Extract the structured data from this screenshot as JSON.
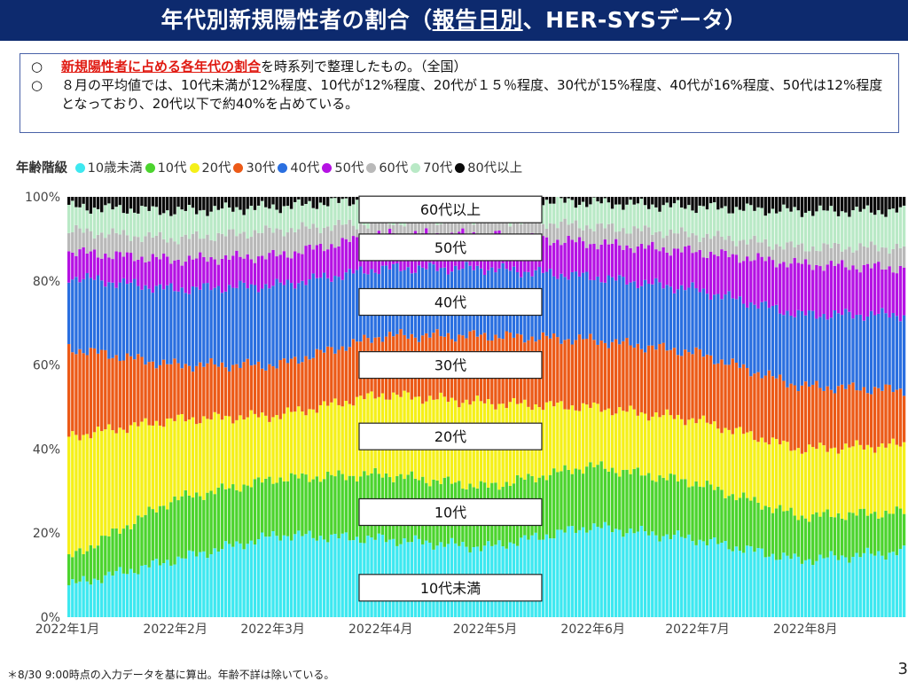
{
  "header": {
    "title_pre": "年代別新規陽性者の割合（",
    "title_underlined": "報告日別",
    "title_post": "、HER-SYSデータ）"
  },
  "notes": {
    "bullet": "○",
    "line1_red": "新規陽性者に占める各年代の割合",
    "line1_rest": "を時系列で整理したもの。（全国）",
    "line2": "８月の平均値では、10代未満が12%程度、10代が12%程度、20代が１５％程度、30代が15%程度、40代が16%程度、50代は12%程度となっており、20代以下で約40%を占めている。"
  },
  "legend": {
    "title": "年齢階級",
    "items": [
      {
        "label": "10歳未満",
        "color": "#3ee8f0"
      },
      {
        "label": "10代",
        "color": "#4cd42e"
      },
      {
        "label": "20代",
        "color": "#f5f019"
      },
      {
        "label": "30代",
        "color": "#ec5a17"
      },
      {
        "label": "40代",
        "color": "#2a6fe0"
      },
      {
        "label": "50代",
        "color": "#b512e3"
      },
      {
        "label": "60代",
        "color": "#b9b9b9"
      },
      {
        "label": "70代",
        "color": "#b9e9c6"
      },
      {
        "label": "80代以上",
        "color": "#0a0a0a"
      }
    ]
  },
  "chart_data": {
    "type": "area",
    "subtype": "100% stacked bar (daily)",
    "x_tick_labels": [
      "2022年1月",
      "2022年2月",
      "2022年3月",
      "2022年4月",
      "2022年5月",
      "2022年6月",
      "2022年7月",
      "2022年8月"
    ],
    "y_tick_labels": [
      "0%",
      "20%",
      "40%",
      "60%",
      "80%",
      "100%"
    ],
    "ylim": [
      0,
      100
    ],
    "y_unit": "%",
    "x_months": [
      1,
      2,
      3,
      4,
      5,
      6,
      7,
      8
    ],
    "box_labels": [
      "10代未満",
      "10代",
      "20代",
      "30代",
      "40代",
      "50代",
      "60代以上"
    ],
    "cumulative_boundaries_note": "Approximate cumulative share (%) at month starts; keys = top of each age band",
    "cumulative": {
      "10歳未満": [
        6,
        12,
        18,
        17,
        15,
        20,
        17,
        12,
        14
      ],
      "10代": [
        14,
        28,
        33,
        34,
        31,
        36,
        32,
        24,
        25
      ],
      "20代": [
        43,
        47,
        48,
        53,
        51,
        50,
        47,
        40,
        41
      ],
      "30代": [
        64,
        60,
        60,
        67,
        67,
        66,
        63,
        55,
        54
      ],
      "40代": [
        81,
        78,
        79,
        83,
        83,
        81,
        78,
        72,
        72
      ],
      "50代": [
        87,
        85,
        86,
        91,
        91,
        89,
        87,
        84,
        83
      ],
      "60代": [
        92,
        90,
        92,
        94,
        95,
        93,
        91,
        88,
        88
      ],
      "70代": [
        96,
        95,
        96,
        98,
        98,
        97,
        96,
        95,
        95
      ],
      "80代以上": [
        100,
        100,
        100,
        100,
        100,
        100,
        100,
        100,
        100
      ]
    }
  },
  "footnote": "＊8/30 9:00時点の入力データを基に算出。年齢不詳は除いている。",
  "page_number": "3"
}
